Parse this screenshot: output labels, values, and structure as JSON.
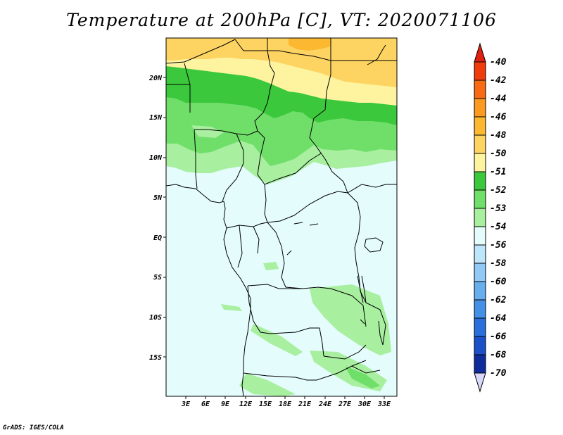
{
  "title": "Temperature at 200hPa [C], VT: 2020071106",
  "credit": "GrADS: IGES/COLA",
  "map": {
    "lat_labels": [
      "20N",
      "15N",
      "10N",
      "5N",
      "EQ",
      "5S",
      "10S",
      "15S"
    ],
    "lon_labels": [
      "3E",
      "6E",
      "9E",
      "12E",
      "15E",
      "18E",
      "21E",
      "24E",
      "27E",
      "30E",
      "33E"
    ]
  },
  "legend": {
    "labels": [
      "-40",
      "-42",
      "-44",
      "-46",
      "-48",
      "-50",
      "-51",
      "-52",
      "-53",
      "-54",
      "-56",
      "-58",
      "-60",
      "-62",
      "-64",
      "-66",
      "-68",
      "-70"
    ],
    "colors": {
      "top_arrow": "#e02010",
      "c_40_42": "#f03c0c",
      "c_42_44": "#f86a14",
      "c_44_46": "#fb9a1e",
      "c_46_48": "#fcb830",
      "c_48_50": "#fdd462",
      "c_50_51": "#fef4a0",
      "c_51_52": "#3cc83c",
      "c_52_53": "#6fdf6a",
      "c_53_54": "#a8efa0",
      "c_54_56": "#e4fcfc",
      "c_56_58": "#bde6fa",
      "c_58_60": "#93caf5",
      "c_60_62": "#68aeee",
      "c_62_64": "#4390e6",
      "c_64_66": "#2a6fdb",
      "c_66_68": "#1a50c8",
      "c_68_70": "#0e2c9c",
      "bottom_arrow": "#d8d8f8"
    }
  }
}
